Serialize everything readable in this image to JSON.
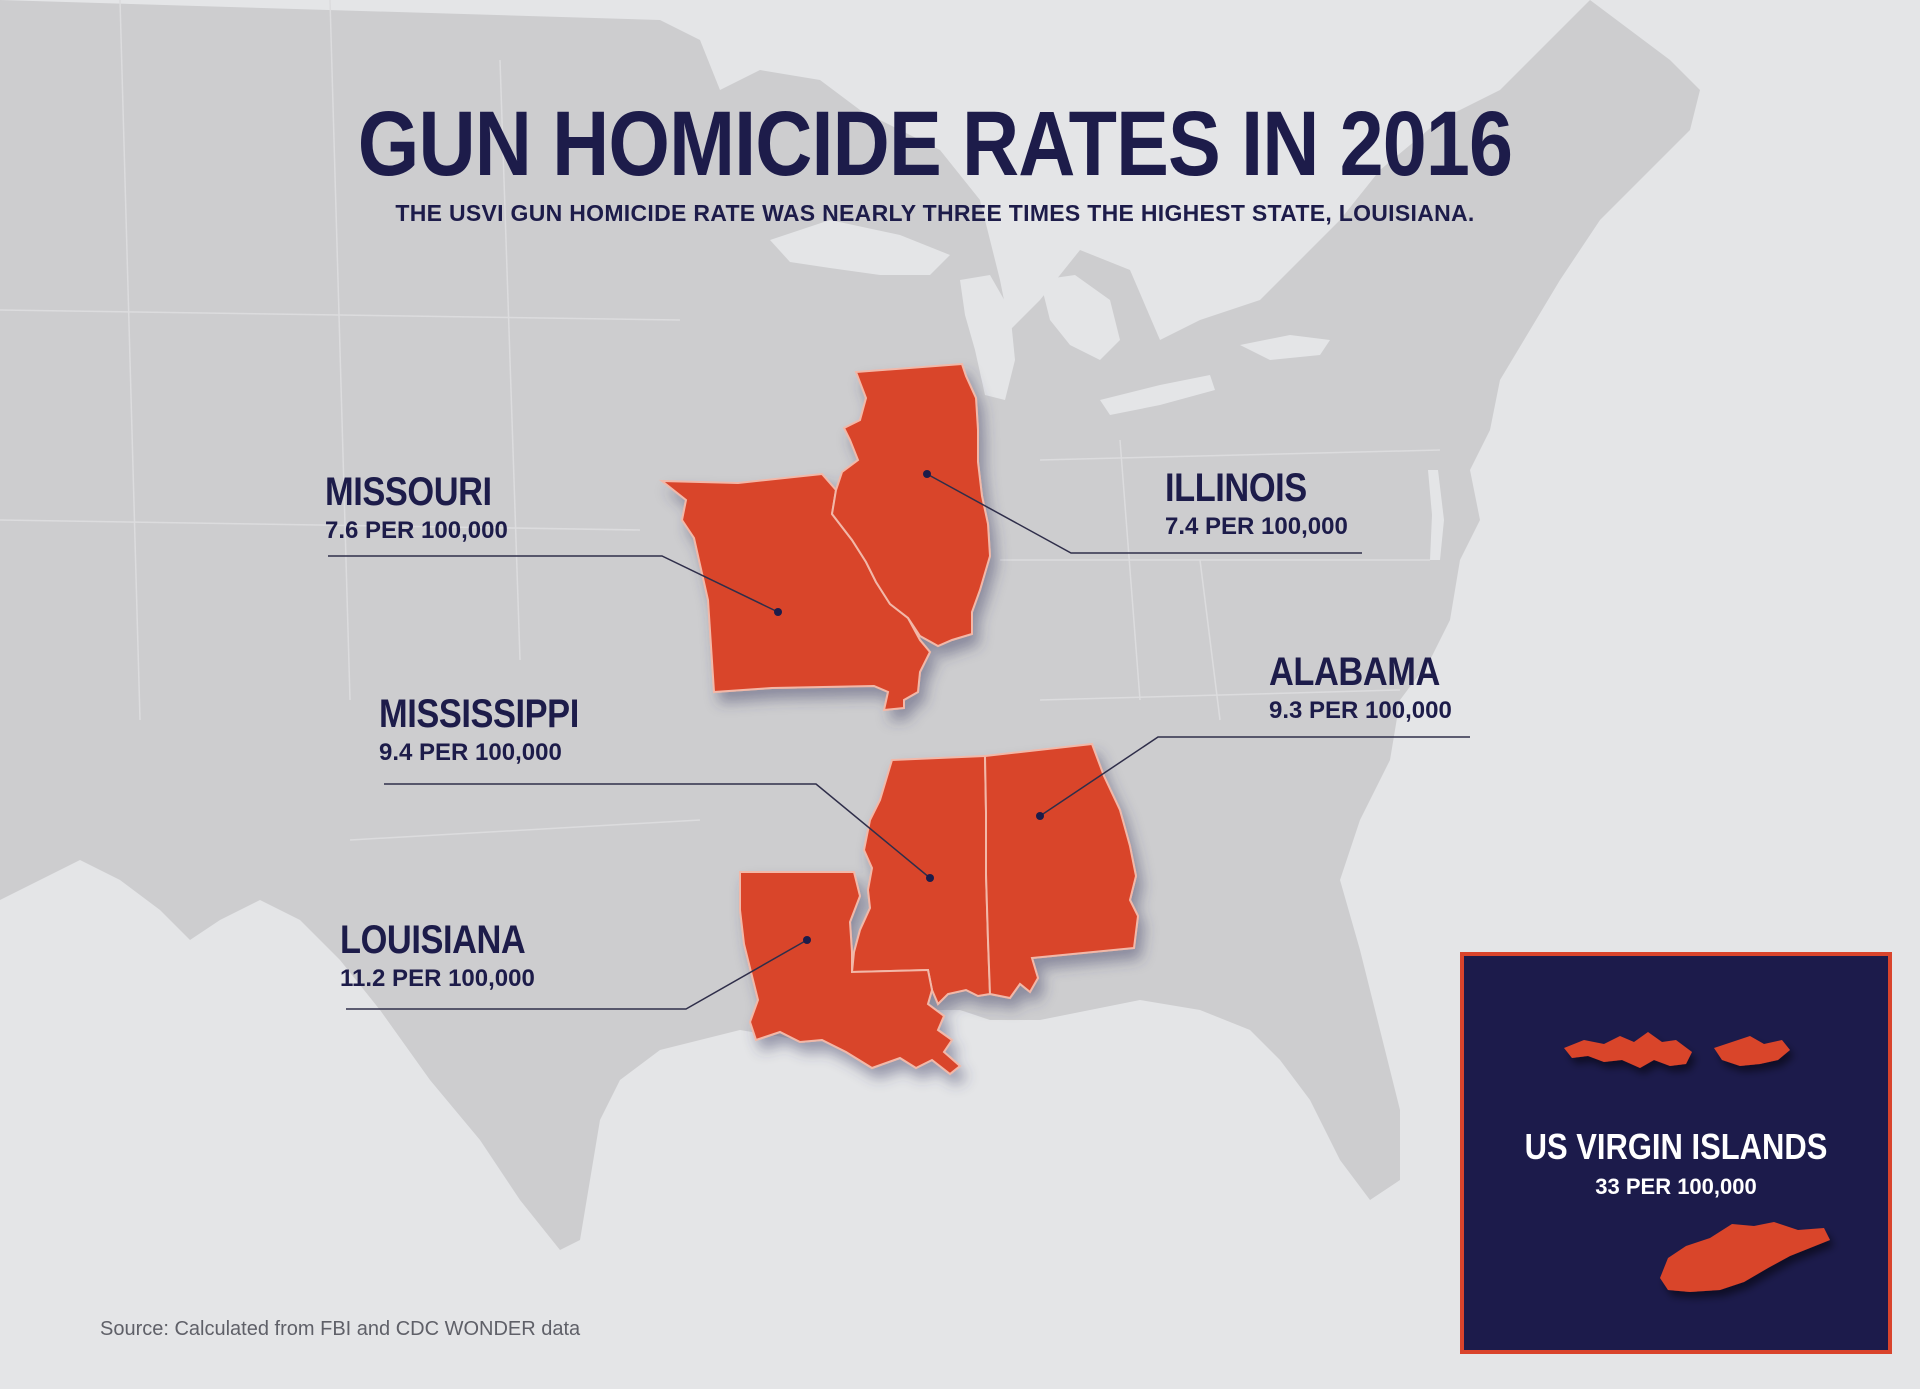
{
  "header": {
    "title": "GUN HOMICIDE RATES IN 2016",
    "subtitle": "THE USVI GUN HOMICIDE RATE WAS NEARLY THREE TIMES THE HIGHEST STATE, LOUISIANA."
  },
  "states": {
    "missouri": {
      "name": "MISSOURI",
      "rate": "7.6 PER 100,000"
    },
    "illinois": {
      "name": "ILLINOIS",
      "rate": "7.4 PER 100,000"
    },
    "mississippi": {
      "name": "MISSISSIPPI",
      "rate": "9.4 PER 100,000"
    },
    "alabama": {
      "name": "ALABAMA",
      "rate": "9.3 PER 100,000"
    },
    "louisiana": {
      "name": "LOUISIANA",
      "rate": "11.2 PER 100,000"
    }
  },
  "inset": {
    "name": "US VIRGIN ISLANDS",
    "rate": "33 PER 100,000"
  },
  "source": "Source: Calculated from FBI and CDC WONDER data",
  "colors": {
    "background": "#e4e5e7",
    "us_landmass": "#cdcdcf",
    "highlight_state": "#d9442c",
    "navy": "#1d1c4a"
  }
}
